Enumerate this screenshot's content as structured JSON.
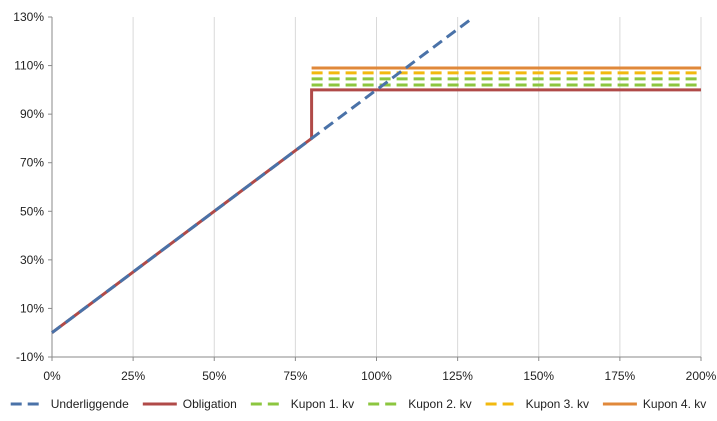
{
  "chart_data": {
    "type": "line",
    "title": "",
    "xlabel": "",
    "ylabel": "",
    "xlim": [
      0,
      2
    ],
    "ylim": [
      -0.1,
      1.3
    ],
    "x_ticks": [
      0,
      0.25,
      0.5,
      0.75,
      1.0,
      1.25,
      1.5,
      1.75,
      2.0
    ],
    "x_tick_labels": [
      "0%",
      "25%",
      "50%",
      "75%",
      "100%",
      "125%",
      "150%",
      "175%",
      "200%"
    ],
    "y_ticks": [
      -0.1,
      0.1,
      0.3,
      0.5,
      0.7,
      0.9,
      1.1,
      1.3
    ],
    "y_tick_labels": [
      "-10%",
      "10%",
      "30%",
      "50%",
      "70%",
      "90%",
      "110%",
      "130%"
    ],
    "grid": "vertical",
    "legend_position": "bottom",
    "series": [
      {
        "name": "Underliggende",
        "color": "#4a72a8",
        "dash": "dashed",
        "points": [
          [
            0,
            0
          ],
          [
            1.3,
            1.3
          ]
        ]
      },
      {
        "name": "Obligation",
        "color": "#b04a48",
        "dash": "solid",
        "points": [
          [
            0,
            0
          ],
          [
            0.8,
            0.8
          ],
          [
            0.8,
            1.0
          ],
          [
            2.0,
            1.0
          ]
        ]
      },
      {
        "name": "Kupon 1. kv",
        "color": "#8cc63f",
        "dash": "dashed",
        "points": [
          [
            0.8,
            1.02
          ],
          [
            2.0,
            1.02
          ]
        ]
      },
      {
        "name": "Kupon 2. kv",
        "color": "#8cc63f",
        "dash": "dashed",
        "points": [
          [
            0.8,
            1.045
          ],
          [
            2.0,
            1.045
          ]
        ]
      },
      {
        "name": "Kupon 3. kv",
        "color": "#f2b90f",
        "dash": "dashed",
        "points": [
          [
            0.8,
            1.07
          ],
          [
            2.0,
            1.07
          ]
        ]
      },
      {
        "name": "Kupon 4. kv",
        "color": "#e0883a",
        "dash": "solid",
        "points": [
          [
            0.8,
            1.09
          ],
          [
            2.0,
            1.09
          ]
        ]
      }
    ]
  }
}
